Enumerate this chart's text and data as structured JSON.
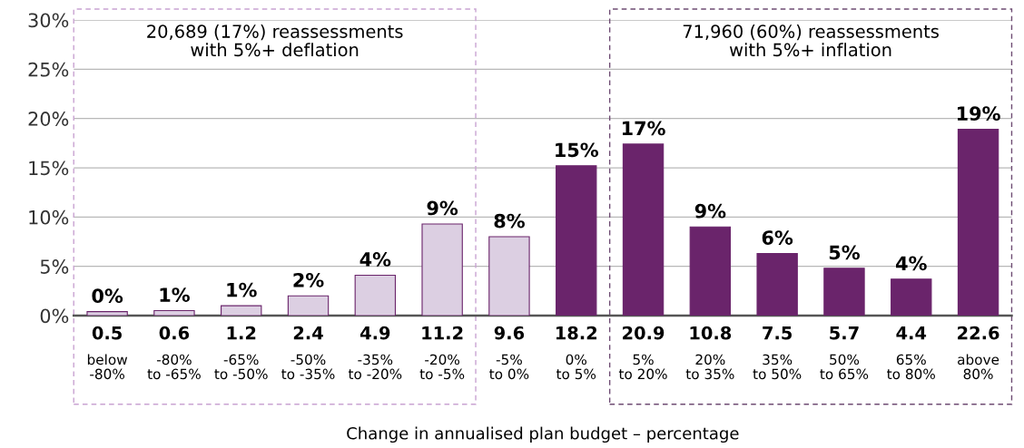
{
  "chart_data": {
    "type": "bar",
    "xlabel": "Change in annualised plan budget – percentage",
    "categories": [
      "below\n-80%",
      "-80%\nto -65%",
      "-65%\nto -50%",
      "-50%\nto -35%",
      "-35%\nto -20%",
      "-20%\nto -5%",
      "-5%\nto 0%",
      "0%\nto 5%",
      "5%\nto 20%",
      "20%\nto 35%",
      "35%\nto 50%",
      "50%\nto 65%",
      "65%\nto 80%",
      "above\n80%"
    ],
    "values": [
      0.4,
      0.5,
      1.0,
      2.0,
      4.1,
      9.3,
      8.0,
      15.2,
      17.4,
      9.0,
      6.3,
      4.8,
      3.7,
      18.9
    ],
    "value_labels": [
      "0%",
      "1%",
      "1%",
      "2%",
      "4%",
      "9%",
      "8%",
      "15%",
      "17%",
      "9%",
      "6%",
      "5%",
      "4%",
      "19%"
    ],
    "colors": [
      "#dccfe2",
      "#dccfe2",
      "#dccfe2",
      "#dccfe2",
      "#dccfe2",
      "#dccfe2",
      "#dccfe2",
      "#6a246b",
      "#6a246b",
      "#6a246b",
      "#6a246b",
      "#6a246b",
      "#6a246b",
      "#6a246b"
    ],
    "ylim": [
      0,
      30
    ],
    "yticks": [
      {
        "value": 0,
        "label": "0%"
      },
      {
        "value": 5,
        "label": "5%"
      },
      {
        "value": 10,
        "label": "10%"
      },
      {
        "value": 15,
        "label": "15%"
      },
      {
        "value": 20,
        "label": "20%"
      },
      {
        "value": 25,
        "label": "25%"
      },
      {
        "value": 30,
        "label": "30%"
      }
    ],
    "grid": "y",
    "annotations": [
      "20,689 (17%) reassessments\nwith 5%+ deflation",
      "71,960 (60%) reassessments\nwith 5%+ inflation",
      "0.5",
      "0.6",
      "1.2",
      "2.4",
      "4.9",
      "11.2",
      "9.6",
      "18.2",
      "20.9",
      "10.8",
      "7.5",
      "5.7",
      "4.4",
      "22.6"
    ]
  }
}
